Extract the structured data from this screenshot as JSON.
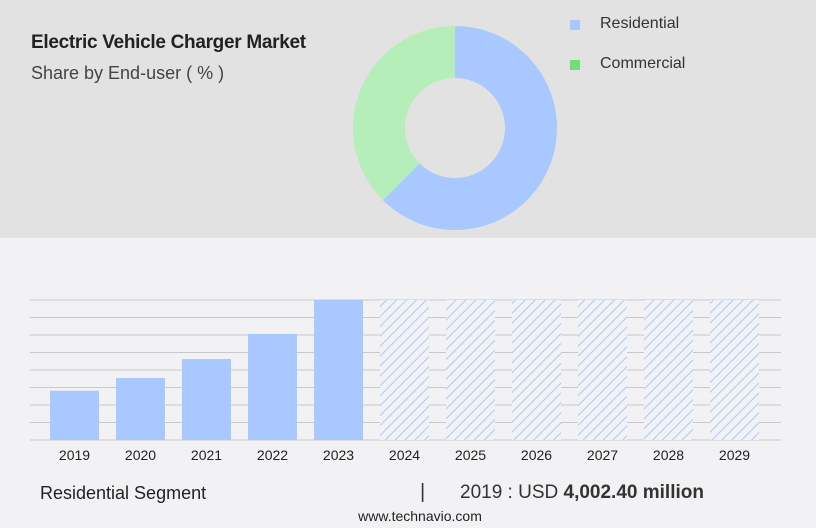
{
  "header": {
    "title": "Electric Vehicle Charger Market",
    "subtitle": "Share by End-user ( % )"
  },
  "chart_data": [
    {
      "type": "pie",
      "variant": "donut",
      "title": "Electric Vehicle Charger Market",
      "subtitle": "Share by End-user ( % )",
      "legend_position": "top-right",
      "slices": [
        {
          "name": "Residential",
          "value": 62.5,
          "color": "#a8c8ff"
        },
        {
          "name": "Commercial",
          "value": 37.5,
          "color": "#b5eeb8"
        }
      ],
      "legend_colors": {
        "Residential": "#a8c8ff",
        "Commercial": "#6ee07a"
      }
    },
    {
      "type": "bar",
      "categories": [
        "2019",
        "2020",
        "2021",
        "2022",
        "2023",
        "2024",
        "2025",
        "2026",
        "2027",
        "2028",
        "2029"
      ],
      "values": [
        4002.4,
        5033,
        6575,
        8605,
        11365,
        null,
        null,
        null,
        null,
        null,
        null
      ],
      "forecast": [
        false,
        false,
        false,
        false,
        false,
        true,
        true,
        true,
        true,
        true,
        true
      ],
      "unit": "USD million",
      "ylim": [
        0,
        11365
      ],
      "grid": true,
      "bar_color": "#a8c8ff",
      "xlabel": "",
      "ylabel": ""
    }
  ],
  "footer": {
    "segment": "Residential Segment",
    "separator": "|",
    "value_prefix": "2019 : USD",
    "value": "4,002.40 million",
    "url": "www.technavio.com"
  }
}
